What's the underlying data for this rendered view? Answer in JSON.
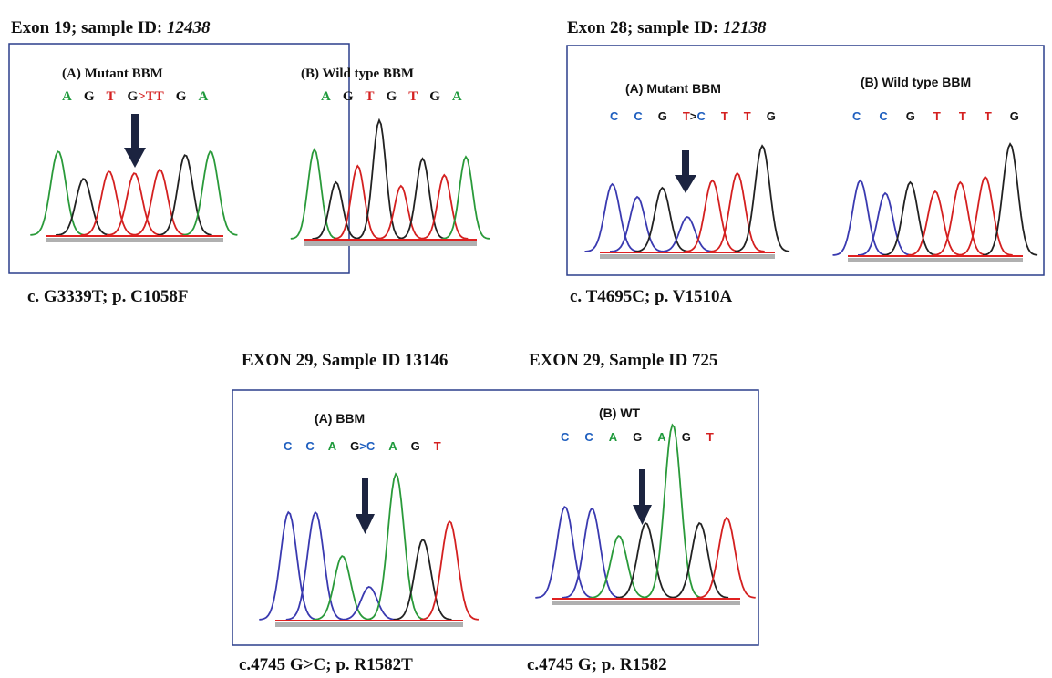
{
  "panels": [
    {
      "header": {
        "label": "Exon 19; sample ID:",
        "id": "12438"
      },
      "traces": [
        {
          "label": "(A) Mutant BBM",
          "bases": [
            [
              {
                "text": "A",
                "color": "#1f9a3c"
              }
            ],
            [
              {
                "text": "G",
                "color": "#111111"
              }
            ],
            [
              {
                "text": "T",
                "color": "#d42020"
              }
            ],
            [
              {
                "text": "G",
                "color": "#111111"
              },
              {
                "text": ">T",
                "color": "#d42020"
              },
              {
                "text": "T",
                "color": "#d42020"
              }
            ],
            [
              {
                "text": "G",
                "color": "#111111"
              }
            ],
            [
              {
                "text": "A",
                "color": "#1f9a3c"
              }
            ]
          ]
        },
        {
          "label": "(B) Wild type BBM",
          "bases": [
            [
              {
                "text": "A",
                "color": "#1f9a3c"
              }
            ],
            [
              {
                "text": "G",
                "color": "#111111"
              }
            ],
            [
              {
                "text": "T",
                "color": "#d42020"
              }
            ],
            [
              {
                "text": "G",
                "color": "#111111"
              }
            ],
            [
              {
                "text": "T",
                "color": "#d42020"
              }
            ],
            [
              {
                "text": "G",
                "color": "#111111"
              }
            ],
            [
              {
                "text": "A",
                "color": "#1f9a3c"
              }
            ]
          ]
        }
      ],
      "captions": [
        "c. G3339T; p. C1058F"
      ]
    },
    {
      "header": {
        "label": "Exon 28; sample ID:",
        "id": "12138"
      },
      "traces": [
        {
          "label": "(A) Mutant BBM",
          "bases": [
            [
              {
                "text": "C",
                "color": "#1f5fbf"
              }
            ],
            [
              {
                "text": "C",
                "color": "#1f5fbf"
              }
            ],
            [
              {
                "text": "G",
                "color": "#111111"
              }
            ],
            [
              {
                "text": "T",
                "color": "#d42020"
              },
              {
                "text": ">",
                "color": "#111111"
              },
              {
                "text": "C",
                "color": "#1f5fbf"
              }
            ],
            [
              {
                "text": "T",
                "color": "#d42020"
              }
            ],
            [
              {
                "text": "T",
                "color": "#d42020"
              }
            ],
            [
              {
                "text": "G",
                "color": "#111111"
              }
            ]
          ]
        },
        {
          "label": "(B) Wild type BBM",
          "bases": [
            [
              {
                "text": "C",
                "color": "#1f5fbf"
              }
            ],
            [
              {
                "text": "C",
                "color": "#1f5fbf"
              }
            ],
            [
              {
                "text": "G",
                "color": "#111111"
              }
            ],
            [
              {
                "text": "T",
                "color": "#d42020"
              }
            ],
            [
              {
                "text": "T",
                "color": "#d42020"
              }
            ],
            [
              {
                "text": "T",
                "color": "#d42020"
              }
            ],
            [
              {
                "text": "G",
                "color": "#111111"
              }
            ]
          ]
        }
      ],
      "captions": [
        "c. T4695C; p. V1510A"
      ]
    },
    {
      "headers": [
        "EXON 29, Sample ID 13146",
        "EXON 29, Sample ID 725"
      ],
      "traces": [
        {
          "label": "(A)  BBM",
          "bases": [
            [
              {
                "text": "C",
                "color": "#1f5fbf"
              }
            ],
            [
              {
                "text": "C",
                "color": "#1f5fbf"
              }
            ],
            [
              {
                "text": "A",
                "color": "#1f9a3c"
              }
            ],
            [
              {
                "text": "G",
                "color": "#111111"
              },
              {
                "text": ">C",
                "color": "#1f5fbf"
              }
            ],
            [
              {
                "text": "A",
                "color": "#1f9a3c"
              }
            ],
            [
              {
                "text": "G",
                "color": "#111111"
              }
            ],
            [
              {
                "text": "T",
                "color": "#d42020"
              }
            ]
          ]
        },
        {
          "label": "(B) WT",
          "bases": [
            [
              {
                "text": "C",
                "color": "#1f5fbf"
              }
            ],
            [
              {
                "text": "C",
                "color": "#1f5fbf"
              }
            ],
            [
              {
                "text": "A",
                "color": "#1f9a3c"
              }
            ],
            [
              {
                "text": "G",
                "color": "#111111"
              }
            ],
            [
              {
                "text": "A",
                "color": "#1f9a3c"
              }
            ],
            [
              {
                "text": "G",
                "color": "#111111"
              }
            ],
            [
              {
                "text": "T",
                "color": "#d42020"
              }
            ]
          ]
        }
      ],
      "captions": [
        "c.4745 G>C; p. R1582T",
        "c.4745 G; p. R1582"
      ]
    }
  ]
}
